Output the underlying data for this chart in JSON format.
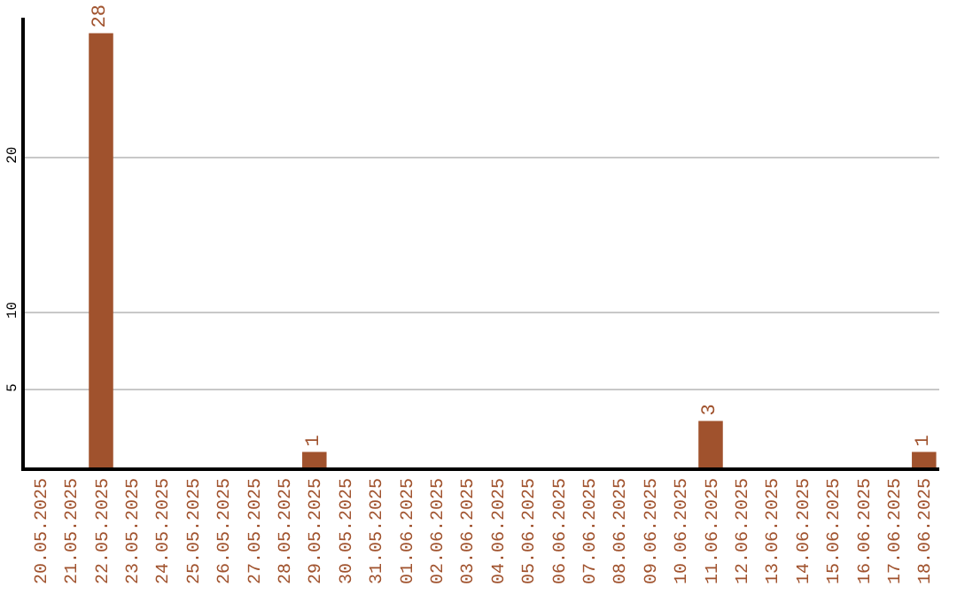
{
  "chart_data": {
    "type": "bar",
    "categories": [
      "20.05.2025",
      "21.05.2025",
      "22.05.2025",
      "23.05.2025",
      "24.05.2025",
      "25.05.2025",
      "26.05.2025",
      "27.05.2025",
      "28.05.2025",
      "29.05.2025",
      "30.05.2025",
      "31.05.2025",
      "01.06.2025",
      "02.06.2025",
      "03.06.2025",
      "04.06.2025",
      "05.06.2025",
      "06.06.2025",
      "07.06.2025",
      "08.06.2025",
      "09.06.2025",
      "10.06.2025",
      "11.06.2025",
      "12.06.2025",
      "13.06.2025",
      "14.06.2025",
      "15.06.2025",
      "16.06.2025",
      "17.06.2025",
      "18.06.2025"
    ],
    "values": [
      0,
      0,
      28,
      0,
      0,
      0,
      0,
      0,
      0,
      1,
      0,
      0,
      0,
      0,
      0,
      0,
      0,
      0,
      0,
      0,
      0,
      0,
      3,
      0,
      0,
      0,
      0,
      0,
      0,
      1
    ],
    "value_labels": [
      null,
      null,
      "28",
      null,
      null,
      null,
      null,
      null,
      null,
      "1",
      null,
      null,
      null,
      null,
      null,
      null,
      null,
      null,
      null,
      null,
      null,
      null,
      "3",
      null,
      null,
      null,
      null,
      null,
      null,
      "1"
    ],
    "color": "#a0522d",
    "ylim": [
      0,
      29
    ],
    "yticks": [
      5,
      10,
      20
    ],
    "grid": "y"
  }
}
